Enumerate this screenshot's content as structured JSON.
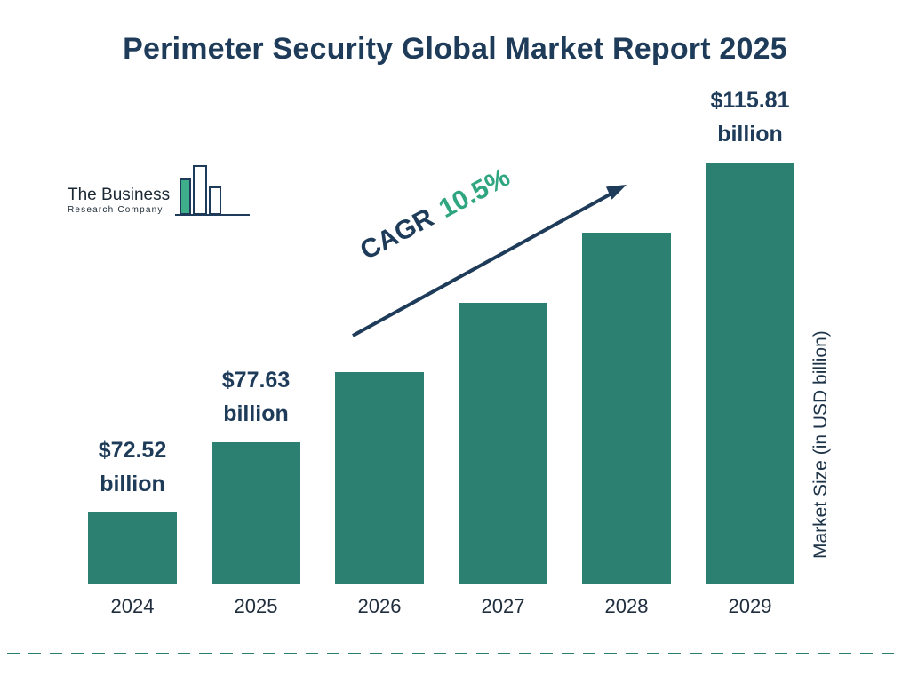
{
  "title": "Perimeter Security Global Market Report 2025",
  "logo": {
    "line1": "The Business",
    "line2": "Research Company"
  },
  "colors": {
    "bar": "#2b8071",
    "navy": "#1e3c59",
    "green_accent": "#2fa580"
  },
  "chart_data": {
    "type": "bar",
    "title": "Perimeter Security Global Market Report 2025",
    "categories": [
      "2024",
      "2025",
      "2026",
      "2027",
      "2028",
      "2029"
    ],
    "values": [
      72.52,
      77.63,
      85.78,
      94.78,
      104.74,
      115.81
    ],
    "values_estimated": [
      false,
      false,
      true,
      true,
      true,
      false
    ],
    "unit": "USD billion",
    "xlabel": "",
    "ylabel": "Market Size (in USD billion)",
    "legend": "none",
    "grid": false,
    "bar_color": "#2b8071",
    "annotations": {
      "cagr_label": "CAGR",
      "cagr_value": "10.5%"
    },
    "value_labels": [
      {
        "line1": "$72.52",
        "line2": "billion"
      },
      {
        "line1": "$77.63",
        "line2": "billion"
      },
      {
        "line1": "",
        "line2": ""
      },
      {
        "line1": "",
        "line2": ""
      },
      {
        "line1": "",
        "line2": ""
      },
      {
        "line1": "$115.81",
        "line2": "billion"
      }
    ]
  }
}
